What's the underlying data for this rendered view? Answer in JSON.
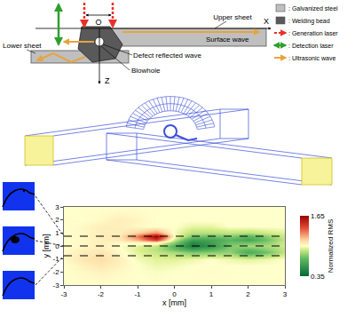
{
  "schematic": {
    "axes": {
      "x": "X",
      "z": "Z",
      "origin": "O"
    },
    "labels": {
      "upper_sheet": "Upper sheet",
      "surface_wave": "Surface wave",
      "defect_reflected_wave": "Defect reflected wave",
      "blowhole": "Blowhole",
      "lower_sheet": "Lower sheet"
    },
    "legend": [
      {
        "label": ": Galvanized steel",
        "color": "#bfbfbf",
        "marker": "box"
      },
      {
        "label": ": Welding bead",
        "color": "#595959",
        "marker": "box"
      },
      {
        "label": ": Generation laser",
        "color": "#e8302a",
        "marker": "dashed_arrow"
      },
      {
        "label": ": Detection laser",
        "color": "#2ca02c",
        "marker": "double_arrow"
      },
      {
        "label": ": Ultrasonic wave",
        "color": "#e8a33d",
        "marker": "arrow"
      }
    ]
  },
  "chart_data": {
    "type": "heatmap",
    "x_label": "x [mm]",
    "y_label": "y [mm]",
    "x": [
      -3,
      -2.5,
      -2,
      -1.5,
      -1,
      -0.5,
      0,
      0.5,
      1,
      1.5,
      2,
      2.5,
      3
    ],
    "y": [
      -3,
      -2,
      -1.5,
      -1,
      -0.5,
      -0.25,
      0,
      0.25,
      0.5,
      0.75,
      1,
      1.5,
      2,
      3
    ],
    "z": [
      [
        1,
        1,
        1,
        1,
        1,
        1,
        1,
        1,
        1,
        1,
        1,
        1,
        1
      ],
      [
        1,
        1.02,
        1.04,
        1.02,
        1,
        0.99,
        1,
        1,
        1.01,
        1,
        1,
        1,
        1
      ],
      [
        1,
        1.04,
        1.07,
        1.04,
        1,
        0.97,
        0.98,
        1,
        1,
        1,
        1,
        1,
        1
      ],
      [
        1.02,
        1.07,
        1.1,
        1.05,
        0.98,
        0.95,
        0.95,
        0.97,
        1,
        0.97,
        0.95,
        0.97,
        1
      ],
      [
        1.02,
        1.05,
        1.08,
        1.02,
        0.95,
        0.9,
        0.85,
        0.78,
        0.8,
        0.82,
        0.65,
        0.75,
        0.9
      ],
      [
        1.01,
        1.04,
        1.06,
        1.01,
        0.94,
        0.88,
        0.75,
        0.62,
        0.7,
        0.8,
        0.72,
        0.8,
        0.9
      ],
      [
        1,
        1.02,
        1.05,
        1,
        0.95,
        0.9,
        0.68,
        0.45,
        0.55,
        0.78,
        0.85,
        0.85,
        0.92
      ],
      [
        1,
        1.02,
        1.05,
        1.02,
        1.02,
        1.05,
        0.8,
        0.5,
        0.6,
        0.75,
        0.75,
        0.8,
        0.92
      ],
      [
        1,
        1.02,
        1.05,
        1.06,
        1.2,
        1.45,
        0.9,
        0.6,
        0.62,
        0.7,
        0.62,
        0.75,
        0.9
      ],
      [
        1,
        1.02,
        1.05,
        1.07,
        1.3,
        1.65,
        1,
        0.78,
        0.75,
        0.8,
        0.7,
        0.8,
        0.92
      ],
      [
        1,
        1.02,
        1.05,
        1.05,
        1.12,
        1.25,
        0.98,
        0.88,
        0.88,
        0.9,
        0.88,
        0.92,
        0.95
      ],
      [
        1,
        1.02,
        1.05,
        1.05,
        1.02,
        1,
        1,
        0.96,
        0.96,
        1,
        1,
        1,
        1
      ],
      [
        1,
        1,
        1.02,
        1.05,
        1.03,
        1,
        1,
        1,
        1,
        1,
        1,
        1,
        1
      ],
      [
        1,
        1,
        1,
        1,
        1,
        1,
        1,
        1,
        1,
        1,
        1,
        1,
        1
      ]
    ],
    "xlim": [
      -3,
      3
    ],
    "ylim": [
      -3,
      3
    ],
    "xticks": [
      -3,
      -2,
      -1,
      0,
      1,
      2,
      3
    ],
    "yticks": [
      -3,
      -2,
      -1,
      0,
      1,
      2,
      3
    ],
    "colorbar": {
      "title": "Normalized RMS",
      "range": [
        0.35,
        1.65
      ],
      "ticks": [
        1.65,
        0.35
      ]
    },
    "reference_lines_y": [
      0.75,
      0,
      -0.75
    ]
  }
}
